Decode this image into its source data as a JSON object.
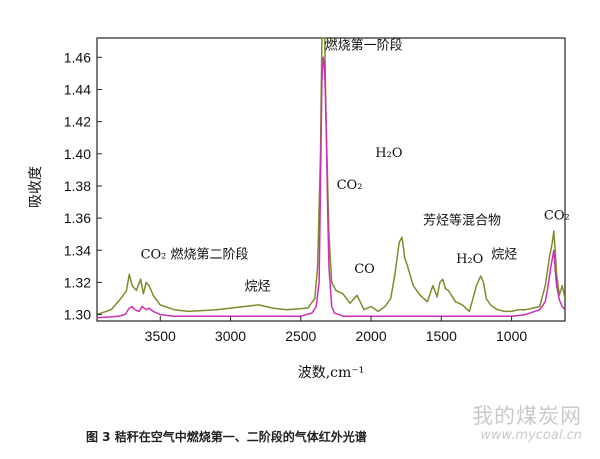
{
  "figure": {
    "caption": "图 3   秸秆在空气中燃烧第一、二阶段的气体红外光谱",
    "watermark": "我的煤炭网",
    "watermark_url": "www.mycoal.cn"
  },
  "chart_data": {
    "type": "line",
    "title": "",
    "xlabel": "波数,cm⁻¹",
    "ylabel": "吸收度",
    "xlim": [
      3950,
      620
    ],
    "ylim": [
      1.296,
      1.472
    ],
    "x_reversed": true,
    "grid": false,
    "legend": "none",
    "x_ticks": [
      3500,
      3000,
      2500,
      2000,
      1500,
      1000
    ],
    "y_ticks": [
      1.3,
      1.32,
      1.34,
      1.36,
      1.38,
      1.4,
      1.42,
      1.44,
      1.46
    ],
    "y_tick_labels": [
      "1.30",
      "1.32",
      "1.34",
      "1.36",
      "1.38",
      "1.40",
      "1.42",
      "1.44",
      "1.46"
    ],
    "series": [
      {
        "color": "#7d8b2a",
        "x": [
          3950,
          3850,
          3780,
          3740,
          3720,
          3700,
          3670,
          3640,
          3620,
          3600,
          3580,
          3550,
          3500,
          3400,
          3300,
          3100,
          2900,
          2800,
          2700,
          2600,
          2450,
          2400,
          2380,
          2360,
          2350,
          2340,
          2330,
          2320,
          2300,
          2280,
          2250,
          2200,
          2150,
          2100,
          2050,
          2000,
          1950,
          1900,
          1860,
          1830,
          1800,
          1780,
          1760,
          1740,
          1700,
          1650,
          1600,
          1560,
          1530,
          1510,
          1490,
          1470,
          1450,
          1400,
          1350,
          1300,
          1250,
          1220,
          1200,
          1180,
          1150,
          1100,
          1050,
          1000,
          950,
          900,
          850,
          800,
          760,
          730,
          710,
          700,
          690,
          680,
          660,
          640,
          620
        ],
        "values": [
          1.3,
          1.303,
          1.31,
          1.315,
          1.325,
          1.318,
          1.315,
          1.322,
          1.313,
          1.32,
          1.318,
          1.312,
          1.306,
          1.303,
          1.302,
          1.303,
          1.305,
          1.306,
          1.304,
          1.303,
          1.304,
          1.31,
          1.33,
          1.4,
          1.472,
          1.472,
          1.472,
          1.42,
          1.35,
          1.32,
          1.315,
          1.313,
          1.307,
          1.312,
          1.303,
          1.305,
          1.302,
          1.305,
          1.31,
          1.325,
          1.345,
          1.348,
          1.335,
          1.33,
          1.318,
          1.312,
          1.308,
          1.318,
          1.311,
          1.32,
          1.322,
          1.316,
          1.315,
          1.308,
          1.306,
          1.302,
          1.318,
          1.324,
          1.32,
          1.31,
          1.306,
          1.303,
          1.302,
          1.302,
          1.303,
          1.303,
          1.304,
          1.305,
          1.318,
          1.336,
          1.345,
          1.352,
          1.34,
          1.325,
          1.312,
          1.318,
          1.31
        ]
      },
      {
        "color": "#cc2fb4",
        "x": [
          3950,
          3800,
          3750,
          3720,
          3700,
          3680,
          3650,
          3630,
          3600,
          3580,
          3550,
          3500,
          3400,
          3300,
          3000,
          2700,
          2500,
          2420,
          2390,
          2370,
          2360,
          2350,
          2340,
          2330,
          2320,
          2310,
          2300,
          2280,
          2260,
          2230,
          2200,
          2150,
          2100,
          2000,
          1800,
          1500,
          1200,
          1000,
          900,
          800,
          760,
          740,
          720,
          710,
          700,
          690,
          680,
          660,
          640,
          620
        ],
        "values": [
          1.298,
          1.299,
          1.3,
          1.304,
          1.305,
          1.303,
          1.302,
          1.305,
          1.303,
          1.304,
          1.302,
          1.3,
          1.299,
          1.299,
          1.299,
          1.299,
          1.299,
          1.301,
          1.305,
          1.32,
          1.38,
          1.445,
          1.46,
          1.452,
          1.42,
          1.37,
          1.33,
          1.305,
          1.301,
          1.3,
          1.299,
          1.299,
          1.299,
          1.299,
          1.299,
          1.299,
          1.299,
          1.299,
          1.3,
          1.303,
          1.308,
          1.318,
          1.33,
          1.335,
          1.34,
          1.328,
          1.318,
          1.309,
          1.305,
          1.303
        ]
      }
    ],
    "annotations": [
      {
        "text": "燃烧第一阶段",
        "x": 2330,
        "y": 1.465
      },
      {
        "text": "H₂O",
        "x": 1970,
        "y": 1.398
      },
      {
        "text": "CO₂",
        "x": 2245,
        "y": 1.378
      },
      {
        "text": "芳烃等混合物",
        "x": 1630,
        "y": 1.356
      },
      {
        "text": "CO₂",
        "x": 770,
        "y": 1.359
      },
      {
        "text": "CO₂ 燃烧第二阶段",
        "x": 3640,
        "y": 1.335
      },
      {
        "text": "CO",
        "x": 2120,
        "y": 1.326
      },
      {
        "text": "H₂O",
        "x": 1395,
        "y": 1.332
      },
      {
        "text": "烷烃",
        "x": 1145,
        "y": 1.335
      },
      {
        "text": "烷烃",
        "x": 2900,
        "y": 1.315
      }
    ]
  }
}
